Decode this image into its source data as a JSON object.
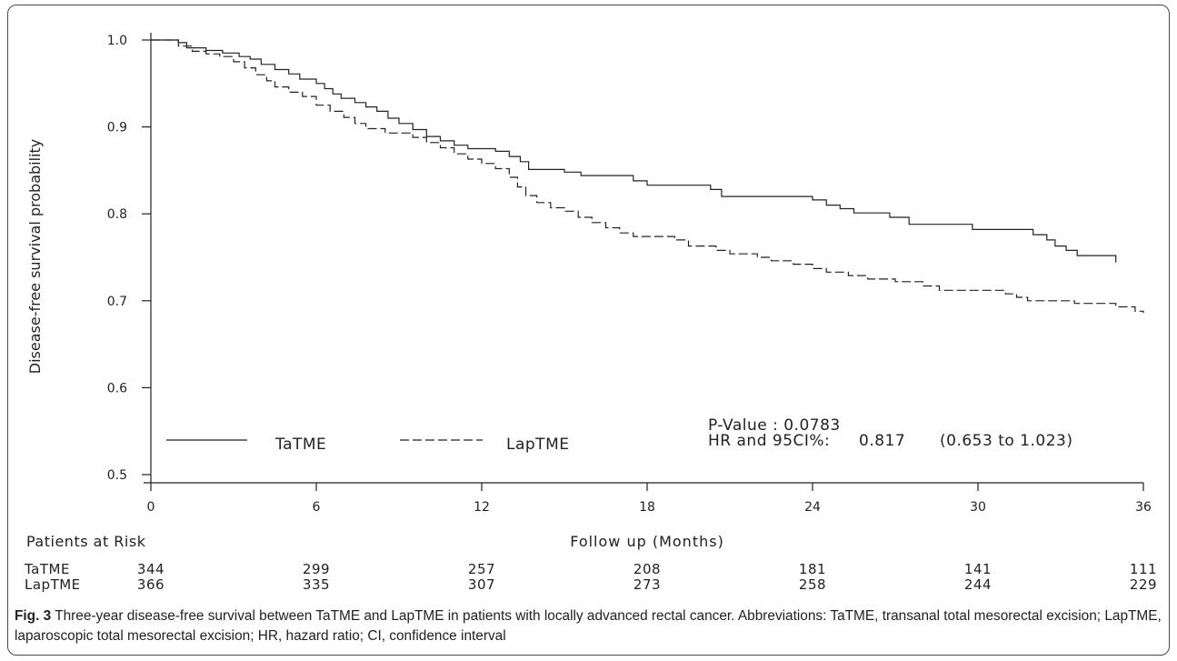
{
  "chart_data": {
    "type": "line",
    "xlabel": "Follow up (Months)",
    "ylabel": "Disease-free survival probability",
    "xlim": [
      0,
      36
    ],
    "ylim": [
      0.5,
      1.0
    ],
    "xticks": [
      0,
      6,
      12,
      18,
      24,
      30,
      36
    ],
    "yticks": [
      0.5,
      0.6,
      0.7,
      0.8,
      0.9,
      1.0
    ],
    "grid": false,
    "legend_position": "bottom-left",
    "series": [
      {
        "name": "TaTME",
        "line_style": "solid",
        "points": [
          [
            0,
            1.0
          ],
          [
            1.0,
            0.997
          ],
          [
            1.3,
            0.991
          ],
          [
            2.0,
            0.988
          ],
          [
            2.6,
            0.985
          ],
          [
            3.2,
            0.981
          ],
          [
            3.6,
            0.978
          ],
          [
            4.0,
            0.972
          ],
          [
            4.5,
            0.966
          ],
          [
            5.0,
            0.961
          ],
          [
            5.4,
            0.955
          ],
          [
            6.0,
            0.95
          ],
          [
            6.3,
            0.944
          ],
          [
            6.6,
            0.938
          ],
          [
            6.9,
            0.933
          ],
          [
            7.4,
            0.928
          ],
          [
            7.8,
            0.923
          ],
          [
            8.2,
            0.918
          ],
          [
            8.6,
            0.91
          ],
          [
            9.0,
            0.904
          ],
          [
            9.5,
            0.897
          ],
          [
            10.0,
            0.889
          ],
          [
            10.5,
            0.884
          ],
          [
            11.0,
            0.879
          ],
          [
            11.5,
            0.875
          ],
          [
            12.5,
            0.872
          ],
          [
            13.0,
            0.866
          ],
          [
            13.4,
            0.86
          ],
          [
            13.7,
            0.851
          ],
          [
            15.0,
            0.848
          ],
          [
            15.6,
            0.844
          ],
          [
            17.5,
            0.838
          ],
          [
            18.0,
            0.833
          ],
          [
            20.3,
            0.828
          ],
          [
            20.7,
            0.82
          ],
          [
            24.0,
            0.816
          ],
          [
            24.5,
            0.81
          ],
          [
            25.0,
            0.806
          ],
          [
            25.5,
            0.801
          ],
          [
            26.8,
            0.796
          ],
          [
            27.5,
            0.788
          ],
          [
            29.8,
            0.782
          ],
          [
            32.0,
            0.776
          ],
          [
            32.5,
            0.77
          ],
          [
            32.8,
            0.763
          ],
          [
            33.2,
            0.758
          ],
          [
            33.6,
            0.752
          ],
          [
            35.0,
            0.748
          ],
          [
            35.0,
            0.744
          ]
        ]
      },
      {
        "name": "LapTME",
        "line_style": "dashed",
        "points": [
          [
            0,
            1.0
          ],
          [
            1.0,
            0.993
          ],
          [
            1.5,
            0.987
          ],
          [
            2.0,
            0.984
          ],
          [
            2.5,
            0.981
          ],
          [
            3.0,
            0.975
          ],
          [
            3.4,
            0.968
          ],
          [
            3.8,
            0.96
          ],
          [
            4.2,
            0.953
          ],
          [
            4.5,
            0.946
          ],
          [
            5.0,
            0.94
          ],
          [
            5.5,
            0.935
          ],
          [
            6.0,
            0.925
          ],
          [
            6.5,
            0.918
          ],
          [
            7.0,
            0.911
          ],
          [
            7.4,
            0.904
          ],
          [
            7.8,
            0.898
          ],
          [
            8.5,
            0.893
          ],
          [
            9.5,
            0.888
          ],
          [
            10.0,
            0.882
          ],
          [
            10.5,
            0.876
          ],
          [
            11.0,
            0.869
          ],
          [
            11.5,
            0.863
          ],
          [
            12.0,
            0.858
          ],
          [
            12.5,
            0.852
          ],
          [
            13.0,
            0.842
          ],
          [
            13.3,
            0.831
          ],
          [
            13.6,
            0.821
          ],
          [
            14.0,
            0.813
          ],
          [
            14.5,
            0.807
          ],
          [
            15.0,
            0.803
          ],
          [
            15.5,
            0.796
          ],
          [
            16.0,
            0.79
          ],
          [
            16.5,
            0.784
          ],
          [
            17.0,
            0.778
          ],
          [
            17.5,
            0.774
          ],
          [
            19.0,
            0.77
          ],
          [
            19.5,
            0.763
          ],
          [
            20.5,
            0.758
          ],
          [
            21.0,
            0.754
          ],
          [
            22.0,
            0.75
          ],
          [
            22.5,
            0.746
          ],
          [
            23.3,
            0.742
          ],
          [
            24.0,
            0.737
          ],
          [
            24.5,
            0.733
          ],
          [
            25.3,
            0.729
          ],
          [
            26.0,
            0.725
          ],
          [
            27.0,
            0.722
          ],
          [
            28.0,
            0.717
          ],
          [
            28.6,
            0.712
          ],
          [
            31.0,
            0.708
          ],
          [
            31.4,
            0.704
          ],
          [
            31.8,
            0.7
          ],
          [
            33.5,
            0.697
          ],
          [
            35.0,
            0.693
          ],
          [
            35.7,
            0.688
          ],
          [
            36.0,
            0.686
          ]
        ]
      }
    ],
    "annotations": {
      "p_value": "P-Value : 0.0783",
      "hr_label": "HR and 95CI%:",
      "hr_value": "0.817",
      "hr_ci": "(0.653 to 1.023)"
    },
    "risk_table": {
      "title": "Patients at Risk",
      "rows": [
        {
          "label": "TaTME",
          "values": [
            344,
            299,
            257,
            208,
            181,
            141,
            111
          ]
        },
        {
          "label": "LapTME",
          "values": [
            366,
            335,
            307,
            273,
            258,
            244,
            229
          ]
        }
      ]
    }
  },
  "caption": {
    "label": "Fig. 3",
    "text": "Three-year disease-free survival between TaTME and LapTME in patients with locally advanced rectal cancer. Abbreviations: TaTME, transanal total mesorectal excision; LapTME, laparoscopic total mesorectal excision; HR, hazard ratio; CI, confidence interval"
  }
}
